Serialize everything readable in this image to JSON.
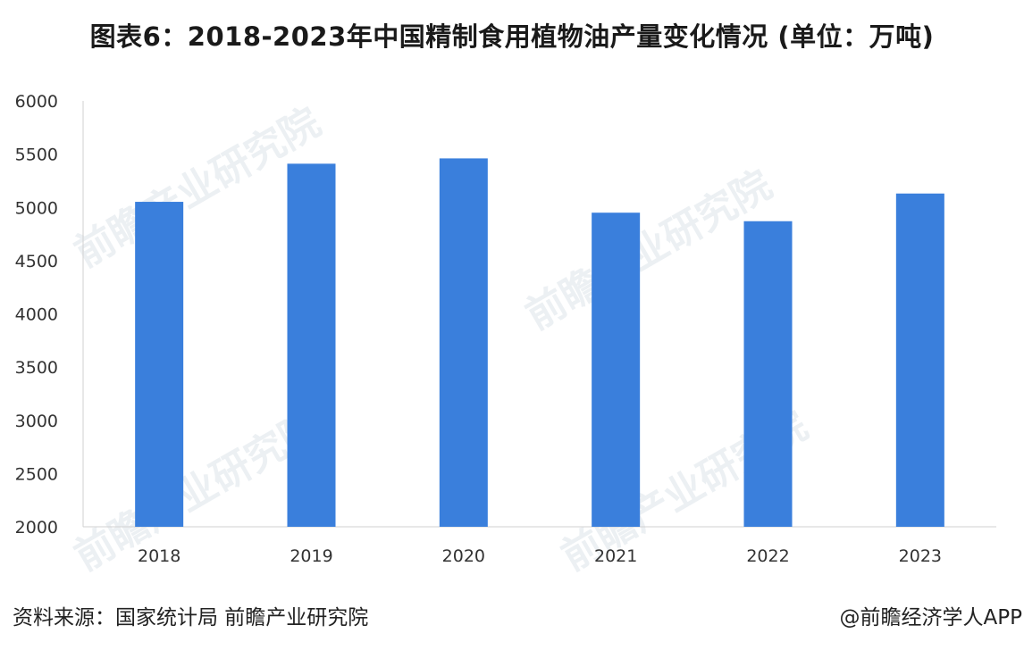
{
  "title": "图表6：2018-2023年中国精制食用植物油产量变化情况 (单位：万吨)",
  "footer": {
    "source": "资料来源：国家统计局 前瞻产业研究院",
    "credit": "@前瞻经济学人APP"
  },
  "watermark": {
    "text": "前瞻产业研究院",
    "color": "#c9d3de"
  },
  "chart_data": {
    "type": "bar",
    "categories": [
      "2018",
      "2019",
      "2020",
      "2021",
      "2022",
      "2023"
    ],
    "values": [
      5052,
      5410,
      5460,
      4950,
      4870,
      5130
    ],
    "ylim": [
      2000,
      6000
    ],
    "yticks": [
      "2000",
      "2500",
      "3000",
      "3500",
      "4000",
      "4500",
      "5000",
      "5500",
      "6000"
    ],
    "bar_color": "#3a7fdc",
    "axis_color": "#d0d0d0",
    "grid": false,
    "legend": "none"
  }
}
